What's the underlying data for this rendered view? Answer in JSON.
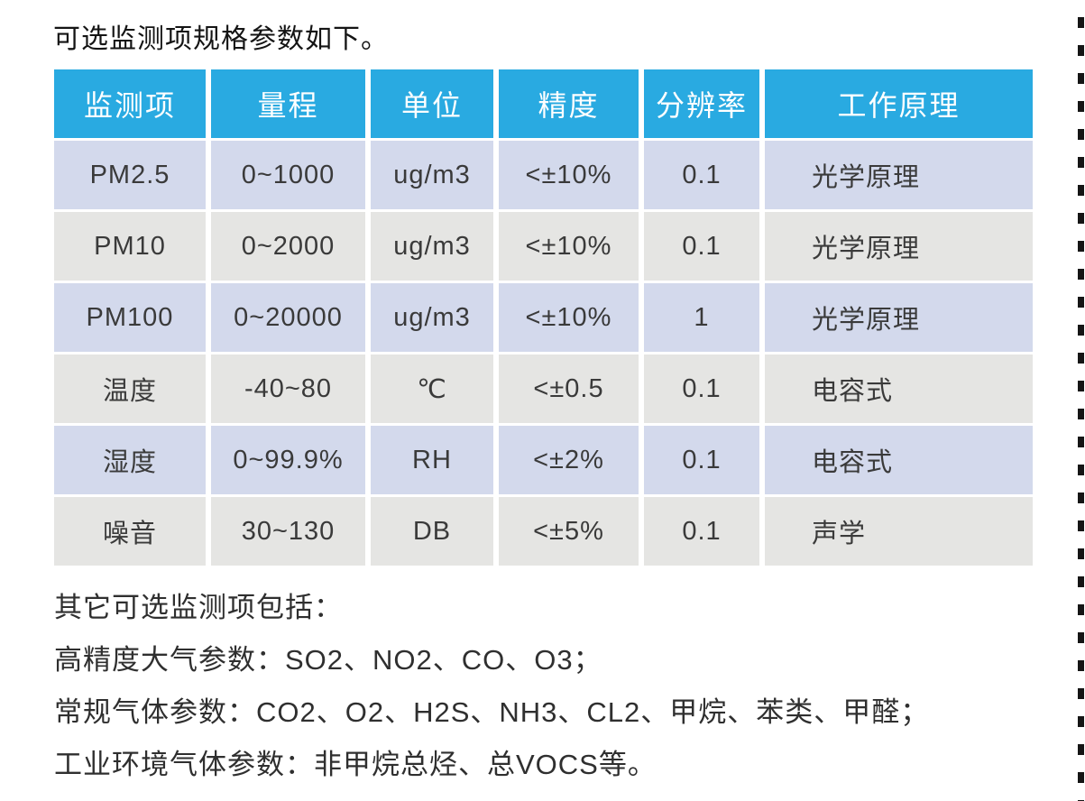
{
  "page": {
    "title": "可选监测项规格参数如下。"
  },
  "table": {
    "columns": [
      "监测项",
      "量程",
      "单位",
      "精度",
      "分辨率",
      "工作原理"
    ],
    "rows": [
      [
        "PM2.5",
        "0~1000",
        "ug/m3",
        "<±10%",
        "0.1",
        "光学原理"
      ],
      [
        "PM10",
        "0~2000",
        "ug/m3",
        "<±10%",
        "0.1",
        "光学原理"
      ],
      [
        "PM100",
        "0~20000",
        "ug/m3",
        "<±10%",
        "1",
        "光学原理"
      ],
      [
        "温度",
        "-40~80",
        "℃",
        "<±0.5",
        "0.1",
        "电容式"
      ],
      [
        "湿度",
        "0~99.9%",
        "RH",
        "<±2%",
        "0.1",
        "电容式"
      ],
      [
        "噪音",
        "30~130",
        "DB",
        "<±5%",
        "0.1",
        "声学"
      ]
    ]
  },
  "notes": {
    "intro": "其它可选监测项包括：",
    "lines": [
      "高精度大气参数：SO2、NO2、CO、O3；",
      "常规气体参数：CO2、O2、H2S、NH3、CL2、甲烷、苯类、甲醛；",
      "工业环境气体参数：非甲烷总烃、总VOCS等。"
    ]
  },
  "colors": {
    "header_bg": "#29aae1",
    "row_alt_blue": "#d3d9ec",
    "row_alt_gray": "#e5e5e3",
    "body_text": "#3a3a3a",
    "header_text": "#ffffff",
    "dash_line": "#151515"
  }
}
